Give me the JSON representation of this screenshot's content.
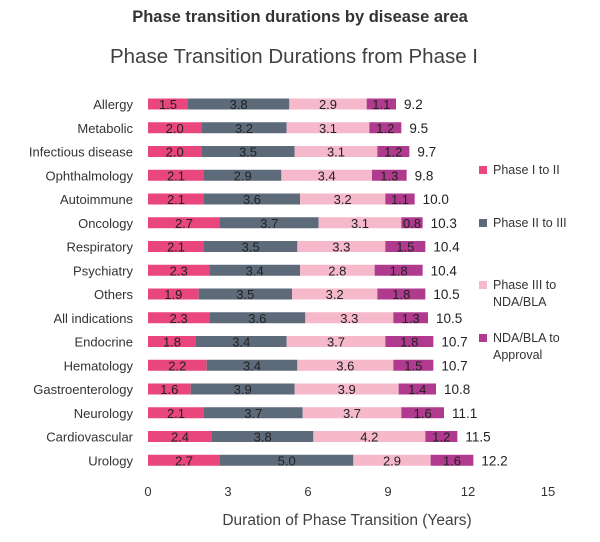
{
  "header": {
    "supertitle": "Phase transition durations by disease area"
  },
  "colors": {
    "phase1": "#e8467c",
    "phase2": "#5d6a7a",
    "phase3": "#f6b8cb",
    "approval": "#b03a8e",
    "axis_text": "#333333",
    "label_text": "#222222"
  },
  "chart_data": {
    "type": "bar",
    "orientation": "horizontal",
    "stacked": true,
    "title": "Phase Transition Durations from Phase I",
    "xlabel": "Duration of Phase Transition (Years)",
    "ylabel": "",
    "xlim": [
      0,
      15
    ],
    "xticks": [
      0,
      3,
      6,
      9,
      12,
      15
    ],
    "grid": false,
    "legend_position": "right",
    "categories": [
      "Allergy",
      "Metabolic",
      "Infectious disease",
      "Ophthalmology",
      "Autoimmune",
      "Oncology",
      "Respiratory",
      "Psychiatry",
      "Others",
      "All indications",
      "Endocrine",
      "Hematology",
      "Gastroenterology",
      "Neurology",
      "Cardiovascular",
      "Urology"
    ],
    "series": [
      {
        "name": "Phase I to II",
        "color": "#e8467c",
        "values": [
          1.5,
          2.0,
          2.0,
          2.1,
          2.1,
          2.7,
          2.1,
          2.3,
          1.9,
          2.3,
          1.8,
          2.2,
          1.6,
          2.1,
          2.4,
          2.7
        ]
      },
      {
        "name": "Phase II to III",
        "color": "#5d6a7a",
        "values": [
          3.8,
          3.2,
          3.5,
          2.9,
          3.6,
          3.7,
          3.5,
          3.4,
          3.5,
          3.6,
          3.4,
          3.4,
          3.9,
          3.7,
          3.8,
          5.0
        ]
      },
      {
        "name": "Phase III to NDA/BLA",
        "color": "#f6b8cb",
        "values": [
          2.9,
          3.1,
          3.1,
          3.4,
          3.2,
          3.1,
          3.3,
          2.8,
          3.2,
          3.3,
          3.7,
          3.6,
          3.9,
          3.7,
          4.2,
          2.9
        ]
      },
      {
        "name": "NDA/BLA to Approval",
        "color": "#b03a8e",
        "values": [
          1.1,
          1.2,
          1.2,
          1.3,
          1.1,
          0.8,
          1.5,
          1.8,
          1.8,
          1.3,
          1.8,
          1.5,
          1.4,
          1.6,
          1.2,
          1.6
        ]
      }
    ],
    "totals": [
      9.2,
      9.5,
      9.7,
      9.8,
      10.0,
      10.3,
      10.4,
      10.4,
      10.5,
      10.5,
      10.7,
      10.7,
      10.8,
      11.1,
      11.5,
      12.2
    ]
  }
}
